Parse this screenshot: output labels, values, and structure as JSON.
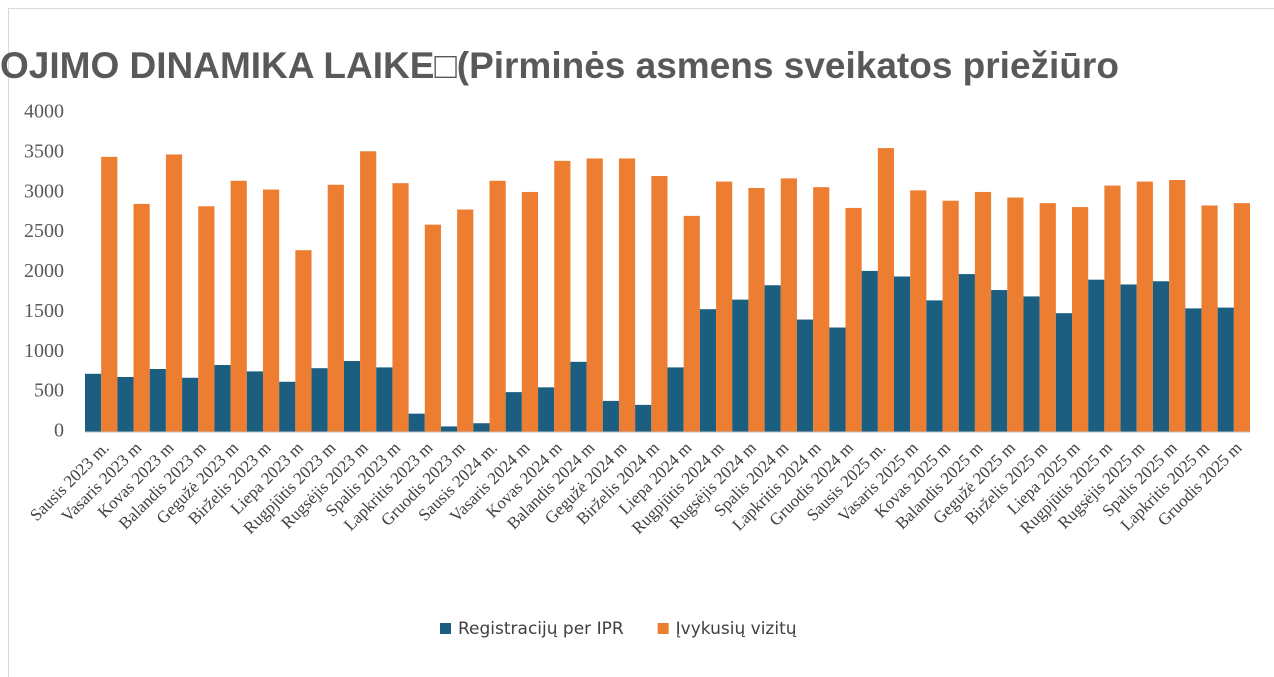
{
  "chart_data": {
    "type": "bar",
    "title": "OJIMO DINAMIKA LAIKE□(Pirminės asmens sveikatos priežiūro",
    "categories": [
      "Sausis 2023 m.",
      "Vasaris 2023 m",
      "Kovas 2023 m",
      "Balandis 2023 m",
      "Gegužė 2023 m",
      "Birželis 2023 m",
      "Liepa 2023 m",
      "Rugpjūtis 2023 m",
      "Rugsėjis 2023 m",
      "Spalis 2023 m",
      "Lapkritis 2023 m",
      "Gruodis 2023 m",
      "Sausis 2024 m.",
      "Vasaris 2024 m",
      "Kovas 2024 m",
      "Balandis 2024 m",
      "Gegužė 2024 m",
      "Birželis 2024 m",
      "Liepa 2024 m",
      "Rugpjūtis 2024 m",
      "Rugsėjis 2024 m",
      "Spalis 2024 m",
      "Lapkritis 2024 m",
      "Gruodis 2024 m",
      "Sausis 2025 m.",
      "Vasaris 2025 m",
      "Kovas 2025 m",
      "Balandis 2025 m",
      "Gegužė 2025 m",
      "Birželis 2025 m",
      "Liepa 2025 m",
      "Rugpjūtis 2025 m",
      "Rugsėjis 2025 m",
      "Spalis 2025 m",
      "Lapkritis 2025 m",
      "Gruodis 2025 m"
    ],
    "series": [
      {
        "name": "Registracijų per IPR",
        "color": "#1b5e80",
        "values": [
          730,
          690,
          790,
          680,
          840,
          760,
          630,
          800,
          890,
          810,
          230,
          70,
          110,
          500,
          560,
          880,
          390,
          340,
          810,
          1540,
          1660,
          1840,
          1410,
          1310,
          2020,
          1950,
          1650,
          1980,
          1780,
          1700,
          1490,
          1910,
          1850,
          1890,
          1550,
          1560
        ]
      },
      {
        "name": "Įvykusių vizitų",
        "color": "#ed7d31",
        "values": [
          3450,
          2860,
          3480,
          2830,
          3150,
          3040,
          2280,
          3100,
          3520,
          3120,
          2600,
          2790,
          3150,
          3010,
          3400,
          3430,
          3430,
          3210,
          2710,
          3140,
          3060,
          3180,
          3070,
          2810,
          3560,
          3030,
          2900,
          3010,
          2940,
          2870,
          2820,
          3090,
          3140,
          3160,
          2840,
          2870
        ]
      }
    ],
    "ylim": [
      0,
      4000
    ],
    "yticks": [
      0,
      500,
      1000,
      1500,
      2000,
      2500,
      3000,
      3500,
      4000
    ],
    "grid": false,
    "legend": "bottom"
  }
}
